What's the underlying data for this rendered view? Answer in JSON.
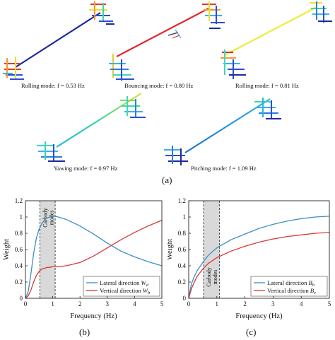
{
  "figure": {
    "panel_a_label": "(a)",
    "panel_b_label": "(b)",
    "panel_c_label": "(c)"
  },
  "modes": [
    {
      "caption": "Rolling mode: f = 0.53 Hz"
    },
    {
      "caption": "Bouncing mode: f = 0.80 Hz"
    },
    {
      "caption": "Rolling mode: f = 0.81 Hz"
    },
    {
      "caption": "Yawing mode: f = 0.97 Hz"
    },
    {
      "caption": "Pitching mode: f = 1.09 Hz"
    }
  ],
  "chart_data": [
    {
      "type": "line",
      "xlabel": "Frequency (Hz)",
      "ylabel": "Weight",
      "xlim": [
        0,
        5
      ],
      "ylim": [
        0,
        1.2
      ],
      "xticks": [
        "0",
        "1",
        "2",
        "3",
        "4",
        "5"
      ],
      "yticks": [
        "0",
        "0.2",
        "0.4",
        "0.6",
        "0.8",
        "1",
        "1.2"
      ],
      "band": {
        "x0": 0.53,
        "x1": 1.09,
        "label_1": "Carbody",
        "label_2": "modes"
      },
      "legend_position": "bottom-right",
      "series": [
        {
          "name": "Lateral direction W_d",
          "label_main": "Lateral direction ",
          "label_sym": "W",
          "label_sub": "d",
          "color": "#3a8fc4",
          "x": [
            0,
            0.1,
            0.2,
            0.3,
            0.4,
            0.5,
            0.6,
            0.7,
            0.8,
            0.9,
            1.0,
            1.1,
            1.2,
            1.5,
            2.0,
            2.5,
            3.0,
            3.5,
            4.0,
            4.5,
            5.0
          ],
          "y": [
            0,
            0.08,
            0.3,
            0.55,
            0.74,
            0.85,
            0.92,
            0.96,
            0.99,
            1.0,
            1.01,
            1.01,
            1.0,
            0.97,
            0.89,
            0.79,
            0.68,
            0.58,
            0.51,
            0.45,
            0.4
          ]
        },
        {
          "name": "Vertical direction W_b",
          "label_main": "Vertical direction ",
          "label_sym": "W",
          "label_sub": "b",
          "color": "#d9393a",
          "x": [
            0,
            0.1,
            0.2,
            0.3,
            0.4,
            0.5,
            0.6,
            0.7,
            0.8,
            0.9,
            1.0,
            1.2,
            1.5,
            2.0,
            2.5,
            3.0,
            3.5,
            4.0,
            4.5,
            5.0
          ],
          "y": [
            0,
            0.03,
            0.1,
            0.2,
            0.28,
            0.33,
            0.36,
            0.37,
            0.38,
            0.38,
            0.39,
            0.39,
            0.4,
            0.44,
            0.52,
            0.62,
            0.72,
            0.81,
            0.89,
            0.96
          ]
        }
      ]
    },
    {
      "type": "line",
      "xlabel": "Frequency (Hz)",
      "ylabel": "Weight",
      "xlim": [
        0,
        5
      ],
      "ylim": [
        0,
        1.2
      ],
      "xticks": [
        "0",
        "1",
        "2",
        "3",
        "4",
        "5"
      ],
      "yticks": [
        "0",
        "0.2",
        "0.4",
        "0.6",
        "0.8",
        "1",
        "1.2"
      ],
      "band": {
        "x0": 0.53,
        "x1": 1.09,
        "label_1": "Carbody",
        "label_2": "modes"
      },
      "legend_position": "bottom-right",
      "series": [
        {
          "name": "Lateral direction B_h",
          "label_main": "Lateral direction ",
          "label_sym": "B",
          "label_sub": "h",
          "color": "#3a8fc4",
          "x": [
            0,
            0.1,
            0.2,
            0.3,
            0.5,
            0.7,
            1.0,
            1.5,
            2.0,
            2.5,
            3.0,
            3.5,
            4.0,
            4.5,
            5.0
          ],
          "y": [
            0,
            0.18,
            0.27,
            0.34,
            0.44,
            0.53,
            0.62,
            0.72,
            0.79,
            0.86,
            0.91,
            0.95,
            0.98,
            1.0,
            1.01
          ]
        },
        {
          "name": "Vertical direction B_v",
          "label_main": "Vertical direction ",
          "label_sym": "B",
          "label_sub": "v",
          "color": "#d9393a",
          "x": [
            0,
            0.1,
            0.2,
            0.3,
            0.5,
            0.7,
            1.0,
            1.5,
            2.0,
            2.5,
            3.0,
            3.5,
            4.0,
            4.5,
            5.0
          ],
          "y": [
            0,
            0.12,
            0.2,
            0.27,
            0.36,
            0.43,
            0.5,
            0.58,
            0.64,
            0.69,
            0.73,
            0.76,
            0.78,
            0.8,
            0.81
          ]
        }
      ]
    }
  ]
}
